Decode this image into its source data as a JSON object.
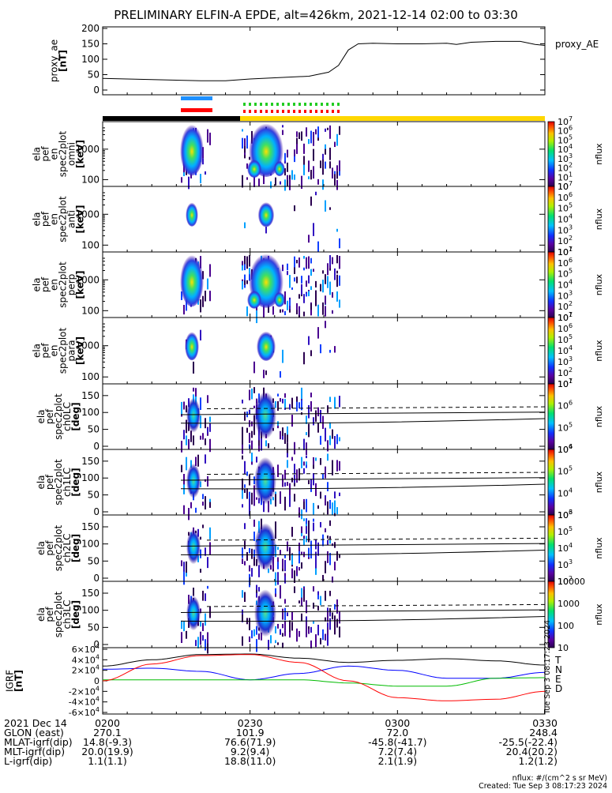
{
  "title": "PRELIMINARY ELFIN-A EPDE, alt=426km, 2021-12-14 02:00 to 03:30",
  "colors": {
    "background": "#ffffff",
    "axis": "#000000",
    "bar_black": "#000000",
    "bar_yellow": "#ffd700",
    "blue_marker": "#1e90ff",
    "red_marker": "#ff0000",
    "green_marker": "#22cc22",
    "igrf_T": "#000000",
    "igrf_N": "#0000ff",
    "igrf_E": "#00bb00",
    "igrf_D": "#ff0000"
  },
  "chart_data": [
    {
      "type": "line",
      "panel": "proxy_ae",
      "ylabel": [
        "proxy_ae",
        "[nT]"
      ],
      "legend": "proxy_AE",
      "ylim": [
        0,
        200
      ],
      "yticks": [
        0,
        50,
        100,
        150,
        200
      ],
      "x_minutes": [
        0,
        10,
        20,
        25,
        30,
        38,
        42,
        46,
        48,
        50,
        52,
        55,
        60,
        65,
        70,
        72,
        75,
        80,
        85,
        88,
        90
      ],
      "values": [
        38,
        34,
        30,
        30,
        36,
        42,
        45,
        58,
        80,
        130,
        150,
        152,
        150,
        150,
        152,
        148,
        155,
        158,
        158,
        148,
        145
      ]
    },
    {
      "type": "heatmap",
      "panel": "energy spectrogram 1",
      "ylabel": [
        "ela",
        "pef",
        "en",
        "spec2plot",
        "omni",
        "[keV]"
      ],
      "scale": "log",
      "yticks": [
        100,
        1000
      ],
      "colorbar": {
        "label": "nflux",
        "ticks": [
          "10",
          "10^1",
          "10^2",
          "10^3",
          "10^4",
          "10^5",
          "10^6",
          "10^7"
        ]
      }
    },
    {
      "type": "heatmap",
      "panel": "energy spectrogram 2",
      "ylabel": [
        "ela",
        "pef",
        "en",
        "spec2plot",
        "anti",
        "[keV]"
      ],
      "scale": "log",
      "yticks": [
        100,
        1000
      ],
      "colorbar": {
        "label": "nflux",
        "ticks": [
          "10^1",
          "10^2",
          "10^3",
          "10^4",
          "10^5",
          "10^6",
          "10^7"
        ]
      }
    },
    {
      "type": "heatmap",
      "panel": "energy spectrogram 3",
      "ylabel": [
        "ela",
        "pef",
        "en",
        "spec2plot",
        "perp",
        "[keV]"
      ],
      "scale": "log",
      "yticks": [
        100,
        1000
      ],
      "colorbar": {
        "label": "nflux",
        "ticks": [
          "10^1",
          "10^2",
          "10^3",
          "10^4",
          "10^5",
          "10^6",
          "10^7"
        ]
      }
    },
    {
      "type": "heatmap",
      "panel": "energy spectrogram 4",
      "ylabel": [
        "ela",
        "pef",
        "en",
        "spec2plot",
        "para",
        "[keV]"
      ],
      "scale": "log",
      "yticks": [
        100,
        1000
      ],
      "colorbar": {
        "label": "nflux",
        "ticks": [
          "10^1",
          "10^2",
          "10^3",
          "10^4",
          "10^5",
          "10^6",
          "10^7"
        ]
      }
    },
    {
      "type": "heatmap",
      "panel": "pitch angle ch0LC",
      "ylabel": [
        "ela",
        "pef",
        "spec2plot",
        "ch0LC",
        "[deg]"
      ],
      "ylim": [
        0,
        180
      ],
      "yticks": [
        0,
        50,
        100,
        150
      ],
      "colorbar": {
        "label": "nflux",
        "ticks": [
          "10^4",
          "10^5",
          "10^6",
          "10^7"
        ]
      }
    },
    {
      "type": "heatmap",
      "panel": "pitch angle ch1LC",
      "ylabel": [
        "ela",
        "pef",
        "spec2plot",
        "ch1LC",
        "[deg]"
      ],
      "ylim": [
        0,
        180
      ],
      "yticks": [
        0,
        50,
        100,
        150
      ],
      "colorbar": {
        "label": "nflux",
        "ticks": [
          "10^3",
          "10^4",
          "10^5",
          "10^6"
        ]
      }
    },
    {
      "type": "heatmap",
      "panel": "pitch angle ch2LC",
      "ylabel": [
        "ela",
        "pef",
        "spec2plot",
        "ch2LC",
        "[deg]"
      ],
      "ylim": [
        0,
        180
      ],
      "yticks": [
        0,
        50,
        100,
        150
      ],
      "colorbar": {
        "label": "nflux",
        "ticks": [
          "10^2",
          "10^3",
          "10^4",
          "10^5",
          "10^6"
        ]
      }
    },
    {
      "type": "heatmap",
      "panel": "pitch angle ch3LC",
      "ylabel": [
        "ela",
        "pef",
        "spec2plot",
        "ch3LC",
        "[deg]"
      ],
      "ylim": [
        0,
        180
      ],
      "yticks": [
        0,
        50,
        100,
        150
      ],
      "colorbar": {
        "label": "nflux",
        "ticks": [
          "10",
          "100",
          "1000",
          "10000"
        ]
      }
    },
    {
      "type": "line",
      "panel": "IGRF",
      "ylabel": [
        "IGRF",
        "[nT]"
      ],
      "ylim": [
        -60000,
        60000
      ],
      "yticks": [
        "-6×10^4",
        "-4×10^4",
        "-2×10^4",
        "0",
        "2×10^4",
        "4×10^4",
        "6×10^4"
      ],
      "x_minutes": [
        0,
        10,
        20,
        30,
        40,
        50,
        60,
        70,
        80,
        90
      ],
      "series": [
        {
          "name": "T",
          "color": "#000000",
          "values": [
            28000,
            40000,
            50000,
            51000,
            43000,
            35000,
            39000,
            42000,
            38000,
            30000
          ]
        },
        {
          "name": "N",
          "color": "#0000ff",
          "values": [
            22000,
            24000,
            18000,
            2000,
            14000,
            28000,
            20000,
            5000,
            5000,
            16000
          ]
        },
        {
          "name": "E",
          "color": "#00bb00",
          "values": [
            2000,
            2000,
            2000,
            2000,
            2000,
            -4000,
            -10000,
            -10000,
            5000,
            6000
          ]
        },
        {
          "name": "D",
          "color": "#ff0000",
          "values": [
            0,
            32000,
            48000,
            50000,
            35000,
            0,
            -32000,
            -38000,
            -35000,
            -20000
          ]
        }
      ]
    }
  ],
  "time_table": {
    "rows": [
      {
        "label": "2021 Dec 14",
        "values": [
          "0200",
          "0230",
          "0300",
          "0330"
        ]
      },
      {
        "label": "GLON (east)",
        "values": [
          "270.1",
          "101.9",
          "72.0",
          "248.4"
        ]
      },
      {
        "label": "MLAT-igrf(dip)",
        "values": [
          "14.8(-9.3)",
          "76.6(71.9)",
          "-45.8(-41.7)",
          "-25.5(-22.4)"
        ]
      },
      {
        "label": "MLT-igrf(dip)",
        "values": [
          "20.0(19.9)",
          "9.2(9.4)",
          "7.2(7.4)",
          "20.4(20.2)"
        ]
      },
      {
        "label": "L-igrf(dip)",
        "values": [
          "1.1(1.1)",
          "18.8(11.0)",
          "2.1(1.9)",
          "1.2(1.2)"
        ]
      }
    ]
  },
  "footer": {
    "units": "nflux: #/(cm^2 s sr MeV)",
    "created": "Created: Tue Sep  3 08:17:23 2024",
    "side_stamp": "Tue Sep  3 08:17:23 2024"
  }
}
